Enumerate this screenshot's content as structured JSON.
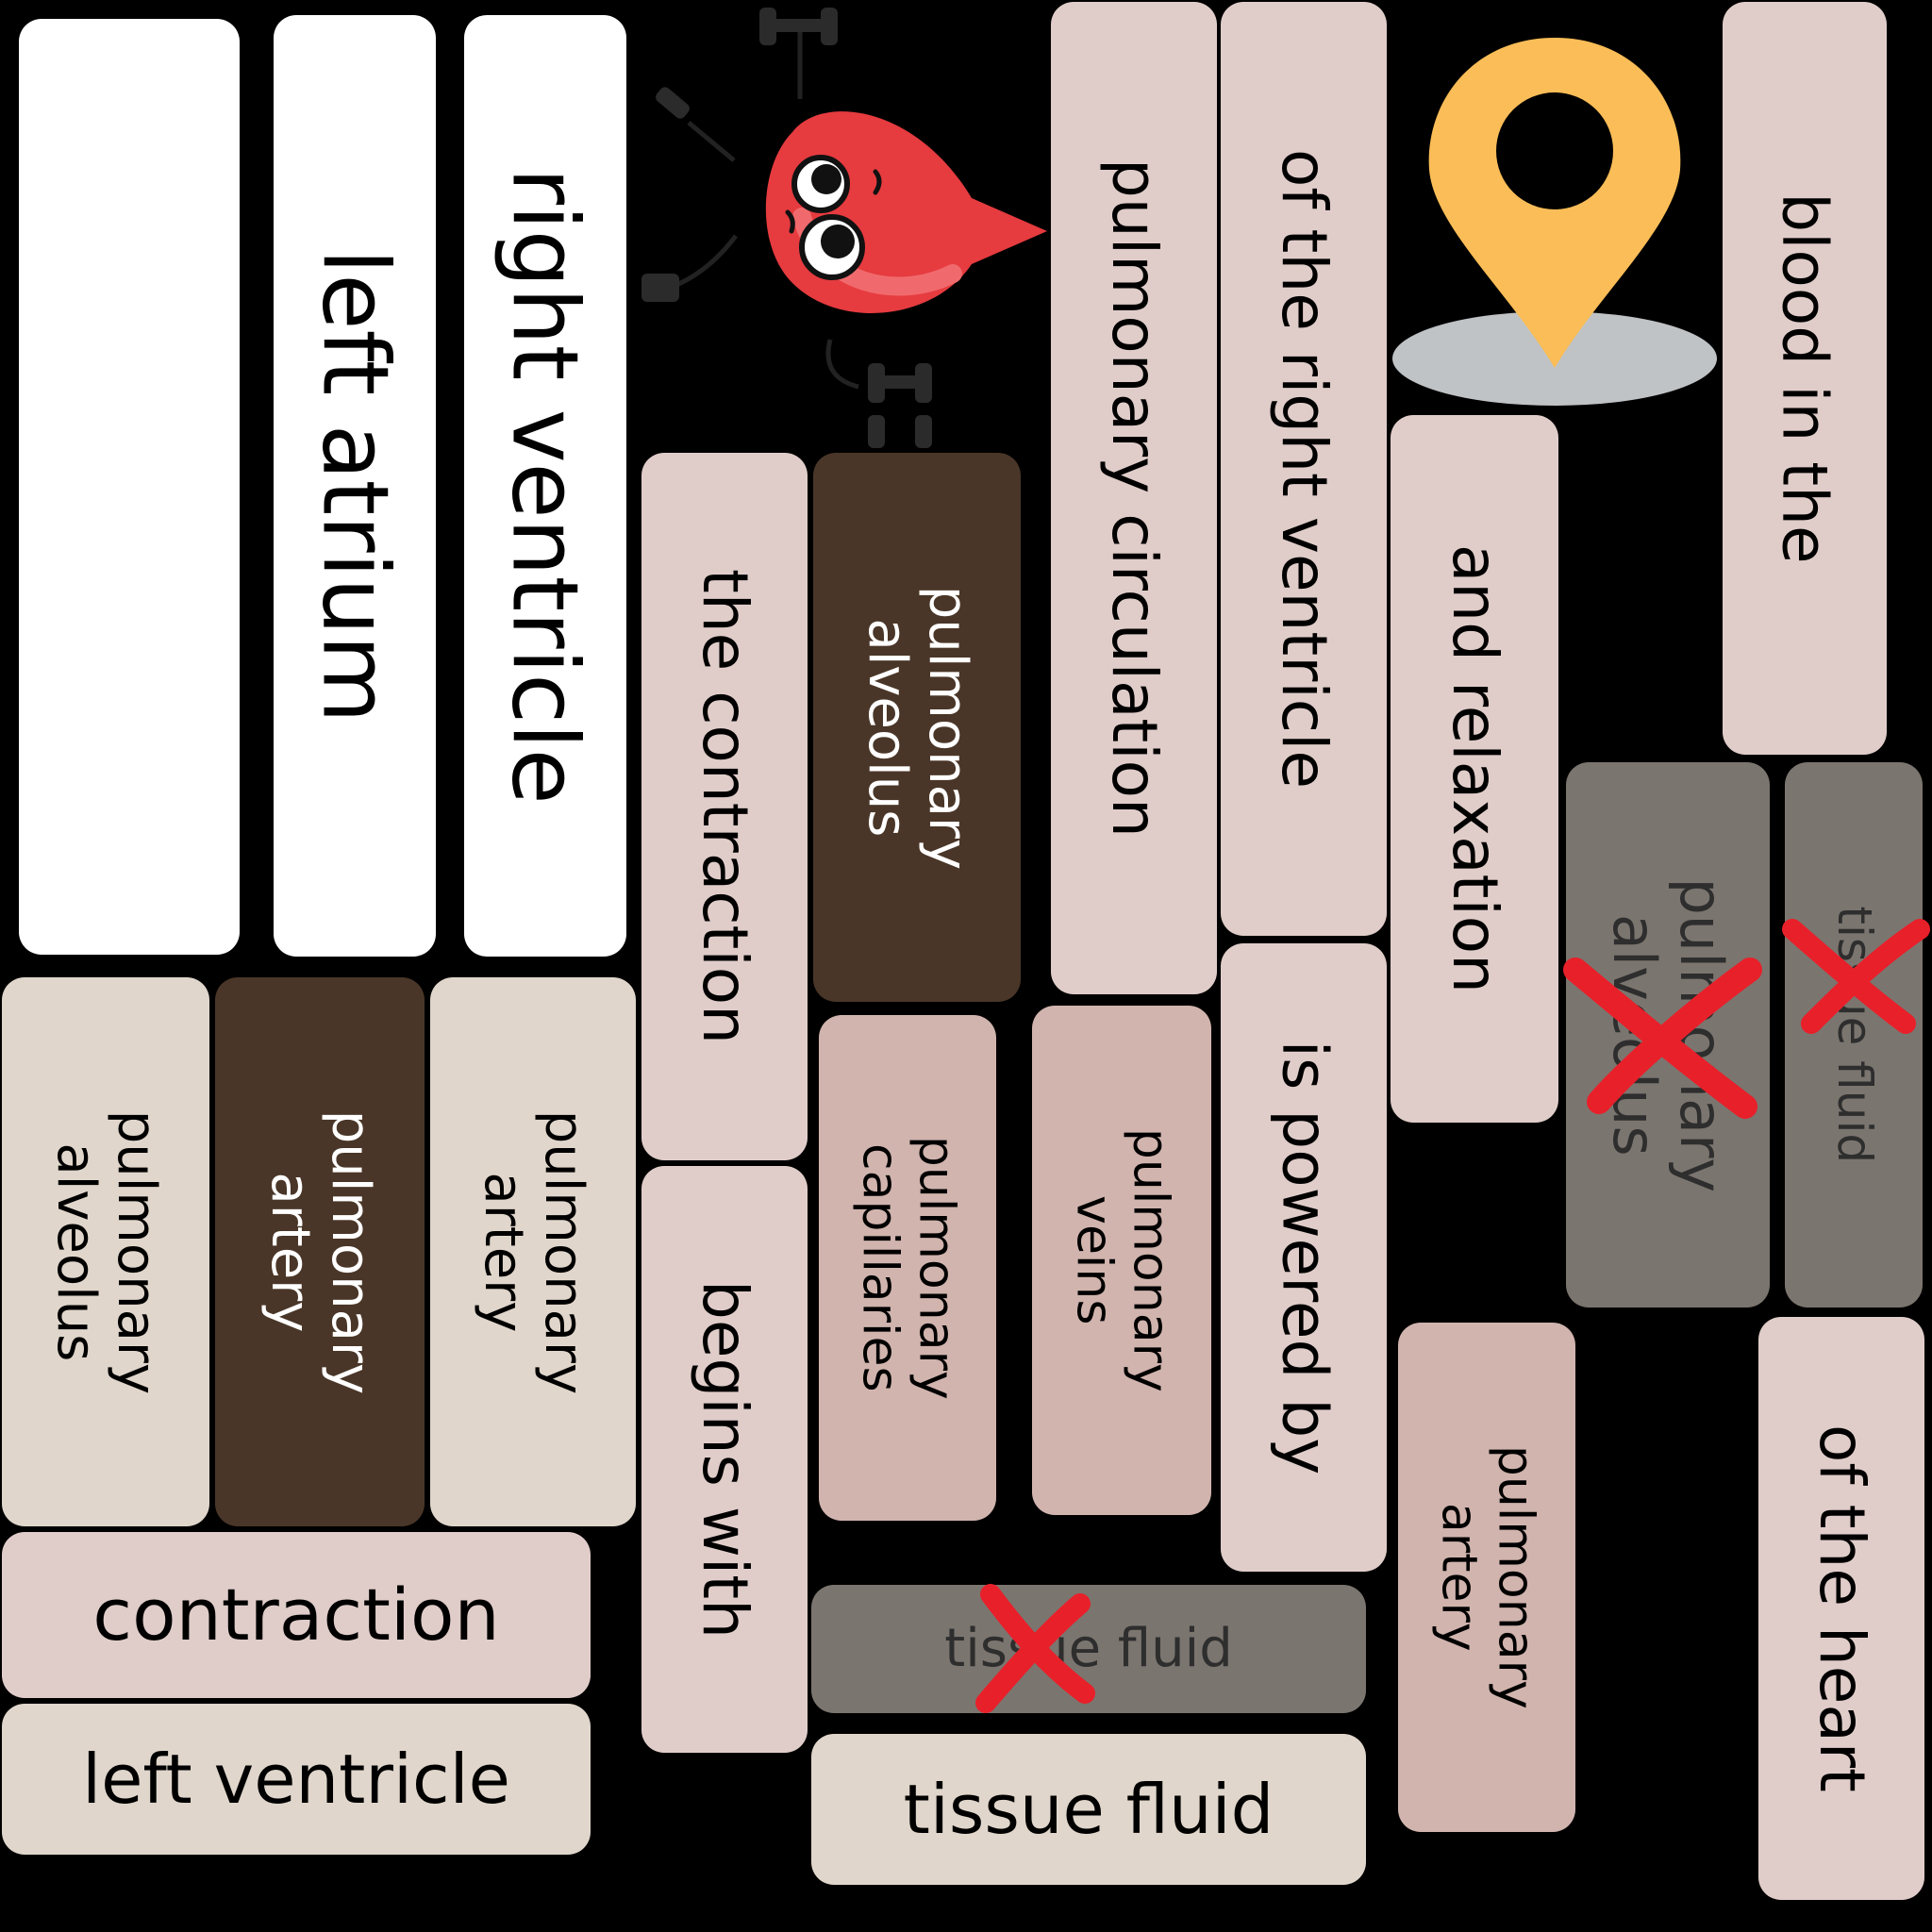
{
  "tiles": {
    "blank": "",
    "right_ventricle": "right ventricle",
    "left_atrium": "left atrium",
    "pulmonary_circulation": "pulmonary circulation",
    "of_the_right_ventricle": "of the right ventricle",
    "blood_in_the": "blood in the",
    "and_relaxation": "and relaxation",
    "the_contraction": "the contraction",
    "pulmonary_alveolus_dark": "pulmonary\nalveolus",
    "pulmonary_alveolus_crossed": "pulmonary\nalveolus",
    "tissue_fluid_crossed_vertical": "tissue fluid",
    "is_powered_by": "is powered by",
    "pulmonary_alveolus_left": "pulmonary\nalveolus",
    "pulmonary_artery_dark": "pulmonary\nartery",
    "pulmonary_artery_beige": "pulmonary\nartery",
    "pulmonary_capillaries": "pulmonary\ncapillaries",
    "pulmonary_veins": "pulmonary\nveins",
    "begins_with": "begins with",
    "of_the_heart": "of the heart",
    "pulmonary_artery_rose": "pulmonary\nartery",
    "contraction": "contraction",
    "left_ventricle": "left ventricle",
    "tissue_fluid_crossed_horizontal": "tissue fluid",
    "tissue_fluid": "tissue fluid"
  },
  "icons": {
    "mascot": "blood-drop-mascot-icon",
    "location": "map-pin-icon",
    "cross": "red-x-icon"
  },
  "colors": {
    "background": "#000000",
    "tile_white": "#ffffff",
    "tile_pink": "#e0cdc9",
    "tile_beige": "#e0d6cb",
    "tile_rose": "#d1b4ae",
    "tile_brown": "#4a3628",
    "cross": "#e8202a",
    "pin": "#fbbd57",
    "drop": "#e63b3f"
  }
}
